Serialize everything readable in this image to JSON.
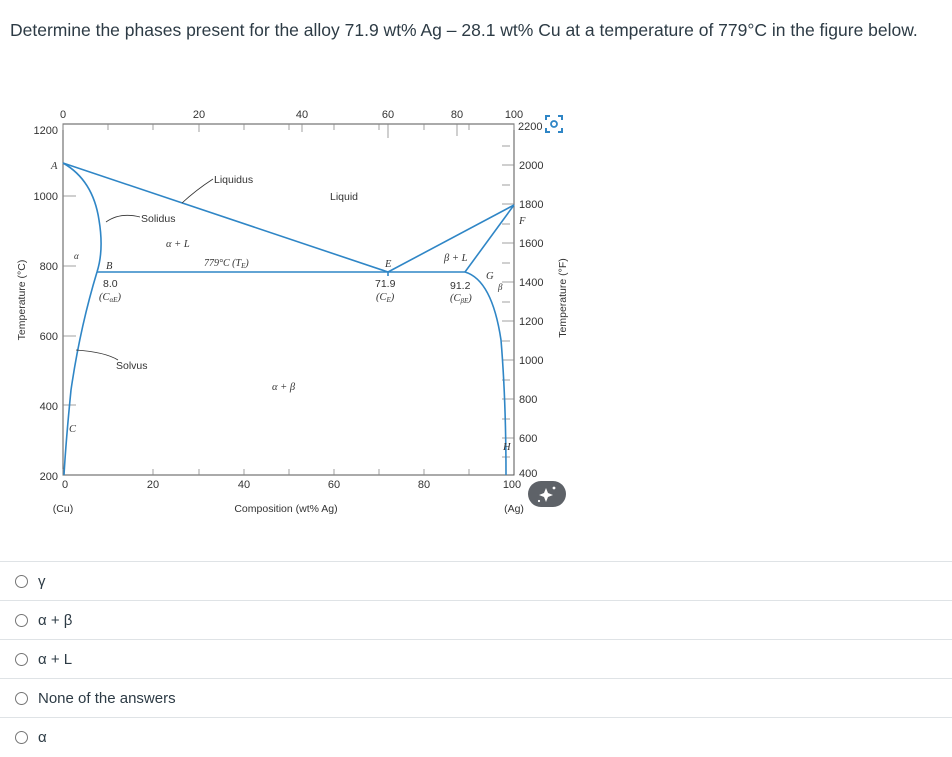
{
  "question": {
    "text": "Determine the phases present for the alloy 71.9 wt% Ag – 28.1 wt% Cu at a temperature of 779°C in the figure below."
  },
  "figure": {
    "top_axis_ticks": [
      "0",
      "20",
      "40",
      "60",
      "80",
      "100"
    ],
    "bottom_axis_ticks": [
      "0",
      "20",
      "40",
      "60",
      "80",
      "100"
    ],
    "left_axis_ticks": [
      "1200",
      "1000",
      "800",
      "600",
      "400",
      "200"
    ],
    "right_axis_ticks": [
      "2200",
      "2000",
      "1800",
      "1600",
      "1400",
      "1200",
      "1000",
      "800",
      "600",
      "400"
    ],
    "left_axis_label": "Temperature (°C)",
    "right_axis_label": "Temperature (°F)",
    "x_axis_label": "Composition (wt% Ag)",
    "left_end_label": "(Cu)",
    "right_end_label": "(Ag)",
    "labels": {
      "liquidus": "Liquidus",
      "liquid": "Liquid",
      "solidus": "Solidus",
      "alpha_L": "α + L",
      "alpha": "α",
      "beta_L": "β + L",
      "beta": "β",
      "alpha_beta": "α + β",
      "solvus": "Solvus",
      "eutectic_temp": "779°C (T",
      "eutectic_temp_sub": "E",
      "eutectic_temp_close": ")",
      "point_A": "A",
      "point_B": "B",
      "point_C": "C",
      "point_E": "E",
      "point_F": "F",
      "point_G": "G",
      "point_H": "H",
      "c_alpha_value": "8.0",
      "c_alpha_label": "(C",
      "c_alpha_sub": "αE",
      "c_e_value": "71.9",
      "c_e_label": "(C",
      "c_e_sub": "E",
      "c_beta_value": "91.2",
      "c_beta_label": "(C",
      "c_beta_sub": "βE",
      "label_close": ")"
    },
    "line_color": "#2f86c6"
  },
  "options": [
    {
      "label": "γ"
    },
    {
      "label": "α + β"
    },
    {
      "label": "α + L"
    },
    {
      "label": "None of the answers"
    },
    {
      "label": "α"
    }
  ]
}
